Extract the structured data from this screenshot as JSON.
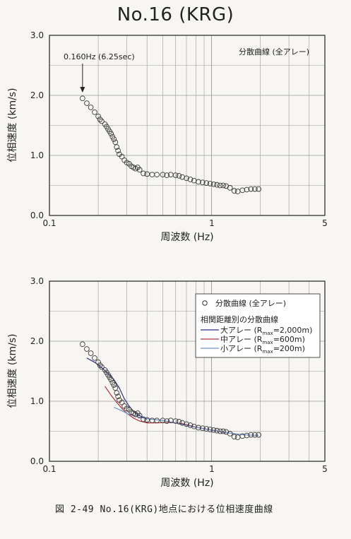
{
  "title": "No.16 (KRG)",
  "caption": "図 2-49  No.16(KRG)地点における位相速度曲線",
  "chart_data": [
    {
      "type": "scatter",
      "xlabel": "周波数 (Hz)",
      "ylabel": "位相速度 (km/s)",
      "x_scale": "log",
      "xlim": [
        0.1,
        5
      ],
      "ylim": [
        0,
        3
      ],
      "x_ticks": [
        "0.1",
        "1",
        "5"
      ],
      "y_ticks": [
        "0.0",
        "1.0",
        "2.0",
        "3.0"
      ],
      "grid": true,
      "annotation": "0.160Hz (6.25sec)",
      "annotation_x": 0.16,
      "legend_text": "分散曲線 (全アレー)",
      "series": [
        {
          "marker": "circle-open",
          "x": [
            0.16,
            0.17,
            0.18,
            0.19,
            0.2,
            0.205,
            0.21,
            0.22,
            0.225,
            0.23,
            0.235,
            0.24,
            0.245,
            0.25,
            0.255,
            0.26,
            0.265,
            0.27,
            0.28,
            0.29,
            0.3,
            0.31,
            0.32,
            0.33,
            0.34,
            0.35,
            0.36,
            0.38,
            0.4,
            0.43,
            0.46,
            0.5,
            0.53,
            0.56,
            0.6,
            0.63,
            0.66,
            0.7,
            0.74,
            0.78,
            0.83,
            0.88,
            0.93,
            0.98,
            1.03,
            1.08,
            1.13,
            1.18,
            1.23,
            1.3,
            1.38,
            1.45,
            1.55,
            1.65,
            1.75,
            1.85,
            1.95
          ],
          "y": [
            1.95,
            1.87,
            1.8,
            1.72,
            1.65,
            1.6,
            1.57,
            1.52,
            1.48,
            1.44,
            1.4,
            1.36,
            1.31,
            1.27,
            1.22,
            1.14,
            1.08,
            1.02,
            0.98,
            0.92,
            0.88,
            0.86,
            0.82,
            0.8,
            0.78,
            0.8,
            0.76,
            0.7,
            0.69,
            0.68,
            0.68,
            0.68,
            0.67,
            0.68,
            0.67,
            0.66,
            0.64,
            0.62,
            0.6,
            0.58,
            0.56,
            0.55,
            0.54,
            0.53,
            0.52,
            0.51,
            0.5,
            0.5,
            0.49,
            0.46,
            0.41,
            0.4,
            0.42,
            0.43,
            0.44,
            0.44,
            0.44
          ]
        }
      ]
    },
    {
      "type": "scatter",
      "xlabel": "周波数 (Hz)",
      "ylabel": "位相速度 (km/s)",
      "x_scale": "log",
      "xlim": [
        0.1,
        5
      ],
      "ylim": [
        0,
        3
      ],
      "x_ticks": [
        "0.1",
        "1",
        "5"
      ],
      "y_ticks": [
        "0.0",
        "1.0",
        "2.0",
        "3.0"
      ],
      "grid": true,
      "legend": {
        "markers_label": "分散曲線 (全アレー)",
        "group_label": "相関距離別の分散曲線",
        "entries": [
          {
            "label": "大アレー",
            "rmax": "=2,000m)",
            "color": "#2b2e86"
          },
          {
            "label": "中アレー",
            "rmax": "=600m)",
            "color": "#b4303a"
          },
          {
            "label": "小アレー",
            "rmax": "=200m)",
            "color": "#6f92cf"
          }
        ]
      },
      "series": [
        {
          "name": "分散曲線 (全アレー)",
          "marker": "circle-open",
          "x": [
            0.16,
            0.17,
            0.18,
            0.19,
            0.2,
            0.205,
            0.21,
            0.22,
            0.225,
            0.23,
            0.235,
            0.24,
            0.245,
            0.25,
            0.255,
            0.26,
            0.265,
            0.27,
            0.28,
            0.29,
            0.3,
            0.31,
            0.32,
            0.33,
            0.34,
            0.35,
            0.36,
            0.38,
            0.4,
            0.43,
            0.46,
            0.5,
            0.53,
            0.56,
            0.6,
            0.63,
            0.66,
            0.7,
            0.74,
            0.78,
            0.83,
            0.88,
            0.93,
            0.98,
            1.03,
            1.08,
            1.13,
            1.18,
            1.23,
            1.3,
            1.38,
            1.45,
            1.55,
            1.65,
            1.75,
            1.85,
            1.95
          ],
          "y": [
            1.95,
            1.87,
            1.8,
            1.72,
            1.65,
            1.6,
            1.57,
            1.52,
            1.48,
            1.44,
            1.4,
            1.36,
            1.31,
            1.27,
            1.22,
            1.14,
            1.08,
            1.02,
            0.98,
            0.92,
            0.88,
            0.86,
            0.82,
            0.8,
            0.78,
            0.8,
            0.76,
            0.7,
            0.69,
            0.68,
            0.68,
            0.68,
            0.67,
            0.68,
            0.67,
            0.66,
            0.64,
            0.62,
            0.6,
            0.58,
            0.56,
            0.55,
            0.54,
            0.53,
            0.52,
            0.51,
            0.5,
            0.5,
            0.49,
            0.46,
            0.41,
            0.4,
            0.42,
            0.43,
            0.44,
            0.44,
            0.44
          ]
        },
        {
          "name": "大アレー",
          "color": "#2b2e86",
          "x": [
            0.17,
            0.19,
            0.21,
            0.23,
            0.25,
            0.27,
            0.29,
            0.31,
            0.33,
            0.36,
            0.4
          ],
          "y": [
            1.72,
            1.65,
            1.56,
            1.46,
            1.36,
            1.22,
            1.04,
            0.92,
            0.83,
            0.76,
            0.7
          ]
        },
        {
          "name": "中アレー",
          "color": "#b4303a",
          "x": [
            0.22,
            0.24,
            0.26,
            0.28,
            0.3,
            0.33,
            0.36,
            0.4,
            0.46,
            0.55,
            0.65,
            0.8,
            1.0,
            1.2
          ],
          "y": [
            1.25,
            1.1,
            0.98,
            0.88,
            0.8,
            0.72,
            0.67,
            0.64,
            0.64,
            0.65,
            0.63,
            0.57,
            0.52,
            0.48
          ]
        },
        {
          "name": "小アレー",
          "color": "#6f92cf",
          "x": [
            0.25,
            0.27,
            0.29,
            0.31,
            0.34,
            0.38,
            0.43,
            0.5,
            0.6,
            0.75,
            0.9,
            1.1,
            1.3,
            1.6,
            1.95
          ],
          "y": [
            0.9,
            0.86,
            0.82,
            0.78,
            0.75,
            0.72,
            0.7,
            0.68,
            0.64,
            0.58,
            0.54,
            0.5,
            0.47,
            0.44,
            0.43
          ]
        }
      ]
    }
  ]
}
